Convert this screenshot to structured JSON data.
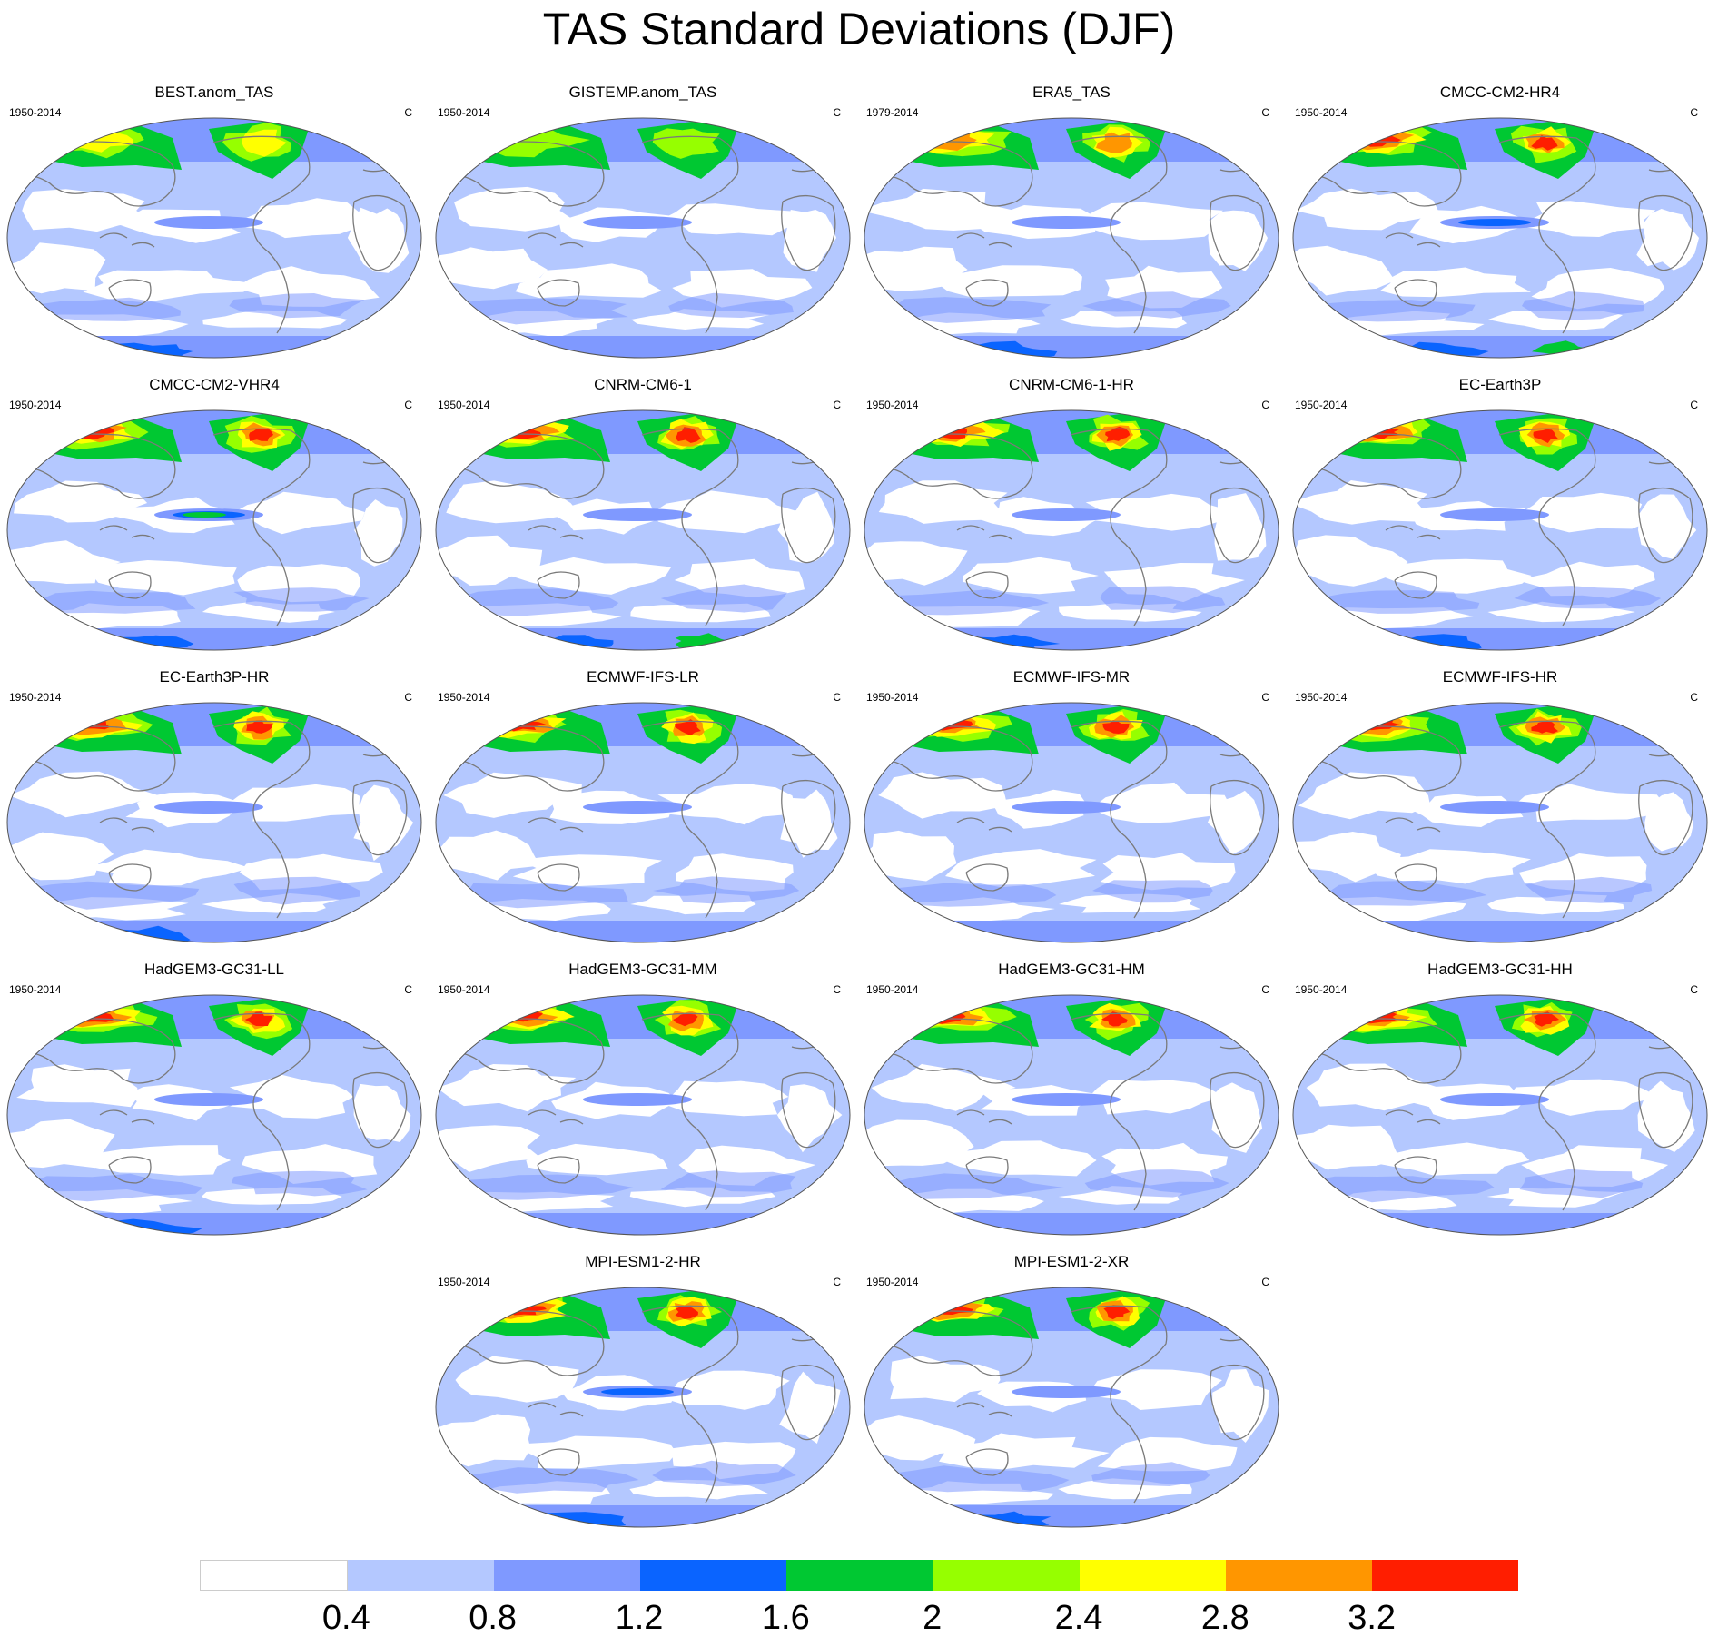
{
  "figure": {
    "title": "TAS Standard Deviations (DJF)"
  },
  "panels": [
    {
      "title": "BEST.anom_TAS",
      "period": "1950-2014",
      "unit": "C",
      "warm_intensity": 0.6,
      "tropical_band_intensity": 0.3,
      "antarctic_intensity": 0.4
    },
    {
      "title": "GISTEMP.anom_TAS",
      "period": "1950-2014",
      "unit": "C",
      "warm_intensity": 0.3,
      "tropical_band_intensity": 0.3,
      "antarctic_intensity": 0.0
    },
    {
      "title": "ERA5_TAS",
      "period": "1979-2014",
      "unit": "C",
      "warm_intensity": 0.75,
      "tropical_band_intensity": 0.35,
      "antarctic_intensity": 0.5
    },
    {
      "title": "CMCC-CM2-HR4",
      "period": "1950-2014",
      "unit": "C",
      "warm_intensity": 0.95,
      "tropical_band_intensity": 0.55,
      "antarctic_intensity": 0.6
    },
    {
      "title": "CMCC-CM2-VHR4",
      "period": "1950-2014",
      "unit": "C",
      "warm_intensity": 0.95,
      "tropical_band_intensity": 0.8,
      "antarctic_intensity": 0.5
    },
    {
      "title": "CNRM-CM6-1",
      "period": "1950-2014",
      "unit": "C",
      "warm_intensity": 0.9,
      "tropical_band_intensity": 0.1,
      "antarctic_intensity": 0.8
    },
    {
      "title": "CNRM-CM6-1-HR",
      "period": "1950-2014",
      "unit": "C",
      "warm_intensity": 0.85,
      "tropical_band_intensity": 0.1,
      "antarctic_intensity": 0.5
    },
    {
      "title": "EC-Earth3P",
      "period": "1950-2014",
      "unit": "C",
      "warm_intensity": 0.85,
      "tropical_band_intensity": 0.1,
      "antarctic_intensity": 0.4
    },
    {
      "title": "EC-Earth3P-HR",
      "period": "1950-2014",
      "unit": "C",
      "warm_intensity": 0.8,
      "tropical_band_intensity": 0.3,
      "antarctic_intensity": 0.4
    },
    {
      "title": "ECMWF-IFS-LR",
      "period": "1950-2014",
      "unit": "C",
      "warm_intensity": 0.95,
      "tropical_band_intensity": 0.3,
      "antarctic_intensity": 0.3
    },
    {
      "title": "ECMWF-IFS-MR",
      "period": "1950-2014",
      "unit": "C",
      "warm_intensity": 0.8,
      "tropical_band_intensity": 0.3,
      "antarctic_intensity": 0.3
    },
    {
      "title": "ECMWF-IFS-HR",
      "period": "1950-2014",
      "unit": "C",
      "warm_intensity": 0.8,
      "tropical_band_intensity": 0.3,
      "antarctic_intensity": 0.3
    },
    {
      "title": "HadGEM3-GC31-LL",
      "period": "1950-2014",
      "unit": "C",
      "warm_intensity": 0.85,
      "tropical_band_intensity": 0.3,
      "antarctic_intensity": 0.5
    },
    {
      "title": "HadGEM3-GC31-MM",
      "period": "1950-2014",
      "unit": "C",
      "warm_intensity": 0.85,
      "tropical_band_intensity": 0.3,
      "antarctic_intensity": 0.3
    },
    {
      "title": "HadGEM3-GC31-HM",
      "period": "1950-2014",
      "unit": "C",
      "warm_intensity": 0.85,
      "tropical_band_intensity": 0.4,
      "antarctic_intensity": 0.3
    },
    {
      "title": "HadGEM3-GC31-HH",
      "period": "1950-2014",
      "unit": "C",
      "warm_intensity": 0.85,
      "tropical_band_intensity": 0.3,
      "antarctic_intensity": 0.3
    },
    {
      "title": "MPI-ESM1-2-HR",
      "period": "1950-2014",
      "unit": "C",
      "warm_intensity": 0.85,
      "tropical_band_intensity": 0.45,
      "antarctic_intensity": 0.5
    },
    {
      "title": "MPI-ESM1-2-XR",
      "period": "1950-2014",
      "unit": "C",
      "warm_intensity": 0.85,
      "tropical_band_intensity": 0.3,
      "antarctic_intensity": 0.4
    }
  ],
  "colorbar": {
    "colors": [
      "#ffffff",
      "#b4c8ff",
      "#7f99ff",
      "#0a64ff",
      "#00c832",
      "#96ff00",
      "#ffff00",
      "#ff9600",
      "#ff1e00"
    ],
    "tick_labels": [
      "0.4",
      "0.8",
      "1.2",
      "1.6",
      "2",
      "2.4",
      "2.8",
      "3.2"
    ]
  },
  "colors": {
    "coastline": "#7a7a7a",
    "ocean_base": "#b4c8ff"
  }
}
